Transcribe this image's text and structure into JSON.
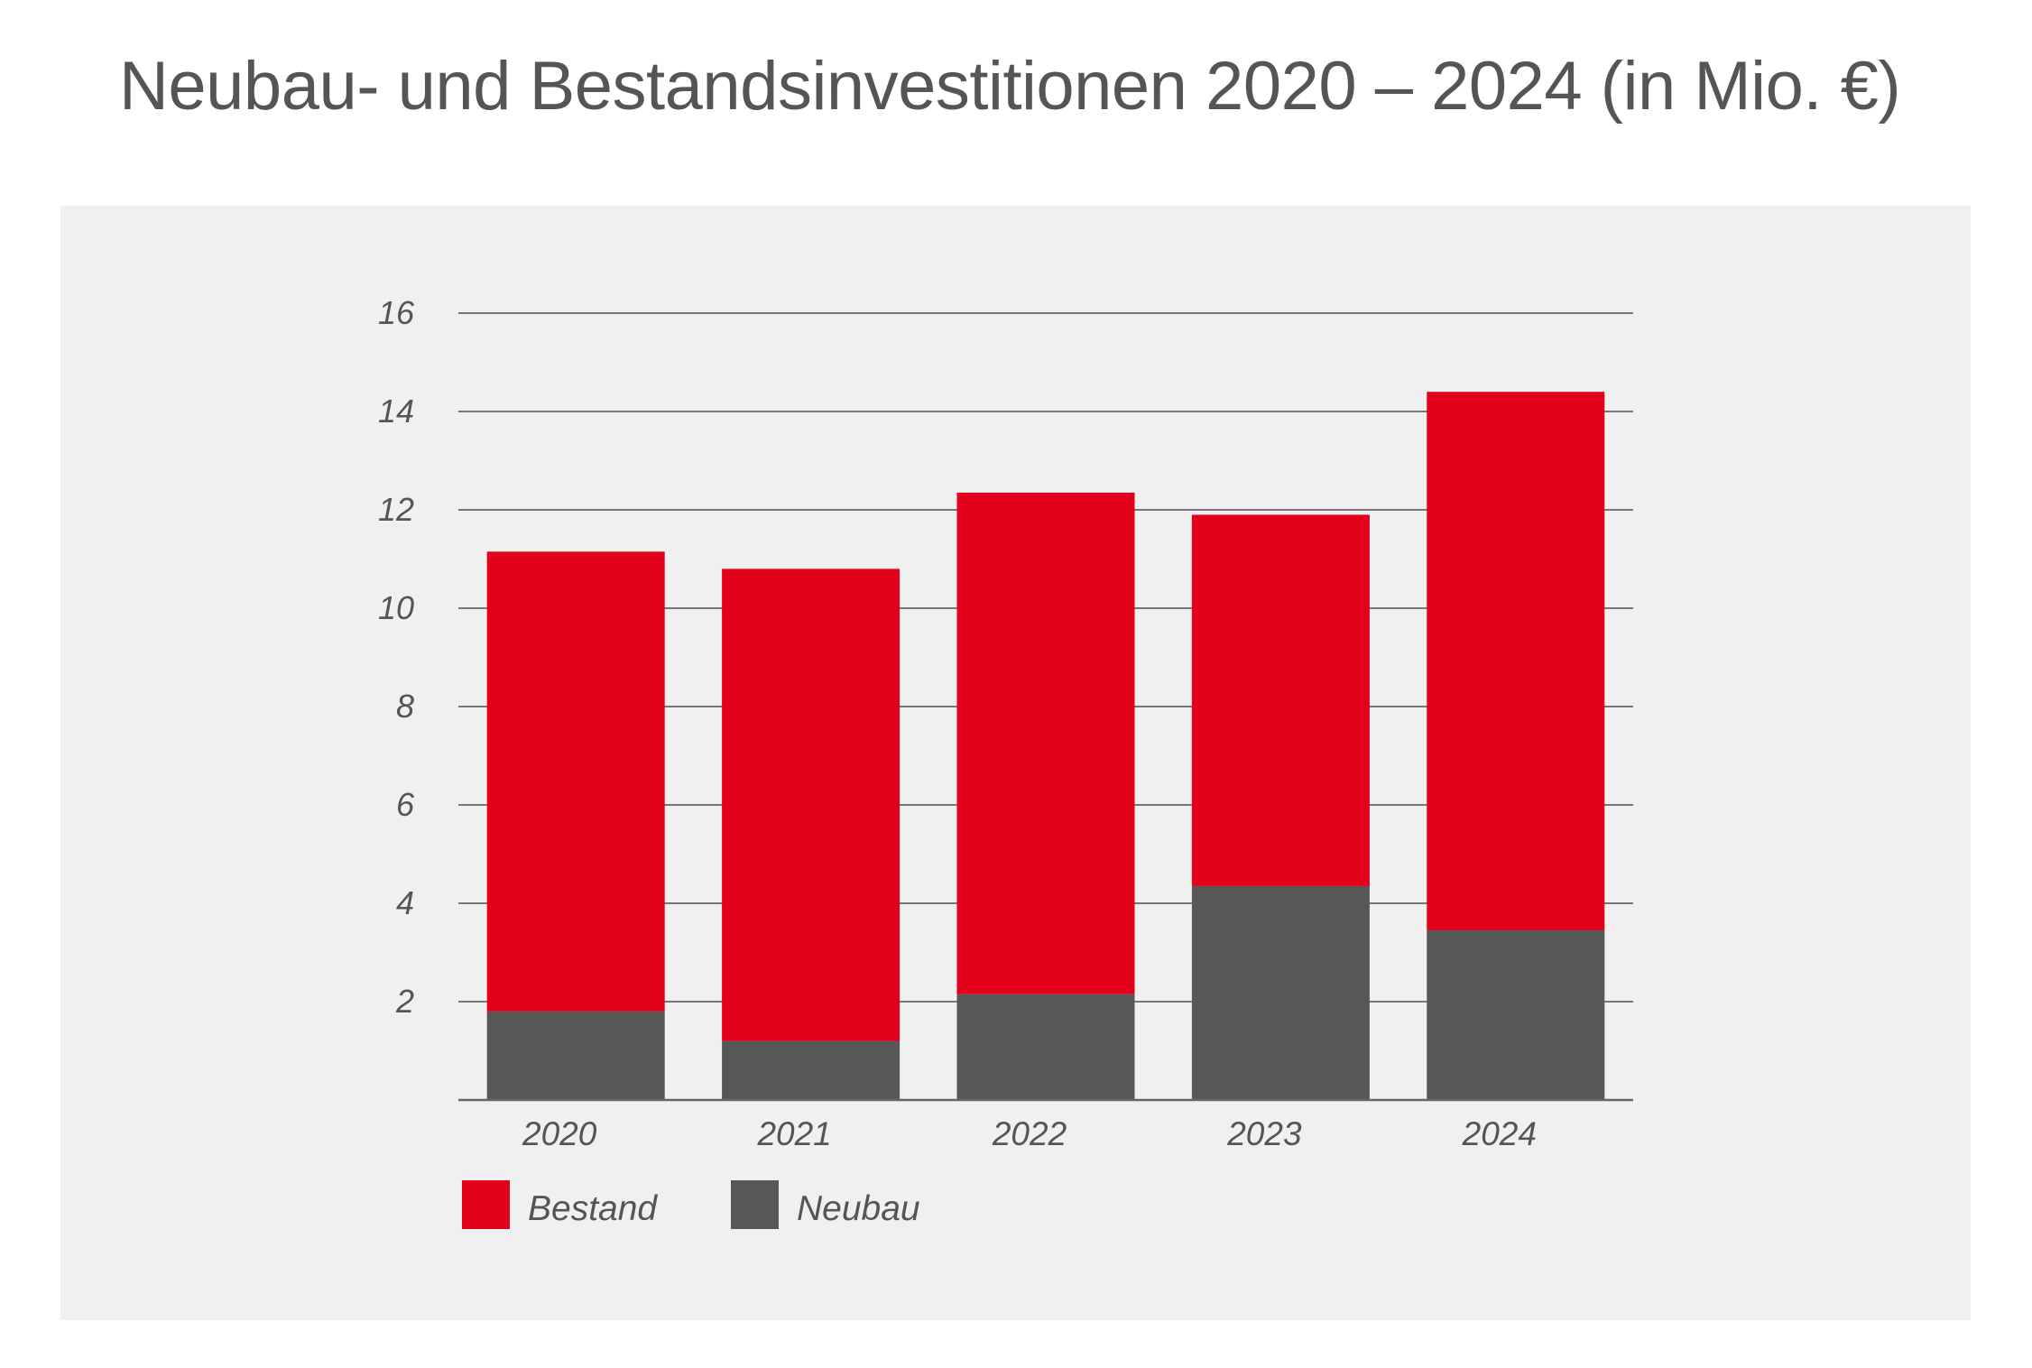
{
  "title": "Neubau- und Bestandsinvestitionen 2020 – 2024 (in Mio. €)",
  "chart_data": {
    "type": "bar",
    "stacked": true,
    "title": "Neubau- und Bestandsinvestitionen 2020 – 2024 (in Mio. €)",
    "xlabel": "",
    "ylabel": "",
    "categories": [
      "2020",
      "2021",
      "2022",
      "2023",
      "2024"
    ],
    "series": [
      {
        "name": "Neubau",
        "color": "#575757",
        "values": [
          1.8,
          1.2,
          2.15,
          4.35,
          3.45
        ]
      },
      {
        "name": "Bestand",
        "color": "#e2001a",
        "values": [
          9.35,
          9.6,
          10.2,
          7.55,
          10.95
        ]
      }
    ],
    "ylim": [
      0,
      16
    ],
    "yticks": [
      2,
      4,
      6,
      8,
      10,
      12,
      14,
      16
    ],
    "grid": true,
    "legend": {
      "placement": "bottom-left",
      "order": [
        "Bestand",
        "Neubau"
      ]
    }
  }
}
